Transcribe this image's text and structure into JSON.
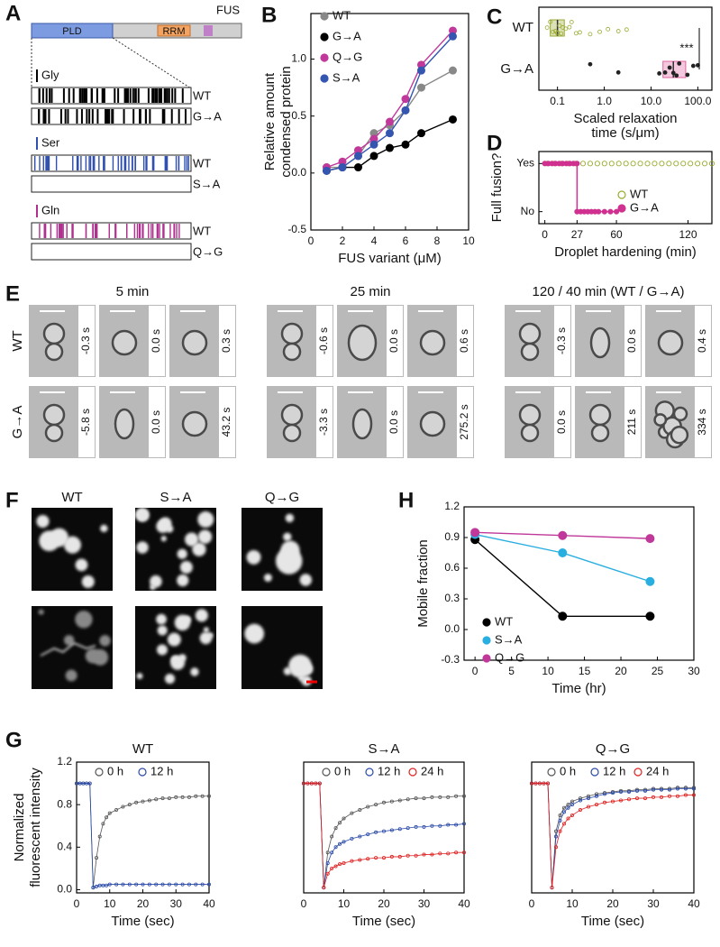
{
  "figure": {
    "panel_a": {
      "label": "A",
      "protein": "FUS",
      "domains": [
        "PLD",
        "RRM"
      ],
      "groups": [
        {
          "residue": "Gly",
          "rows": [
            "WT",
            "G→A"
          ]
        },
        {
          "residue": "Ser",
          "rows": [
            "WT",
            "S→A"
          ]
        },
        {
          "residue": "Gln",
          "rows": [
            "WT",
            "Q→G"
          ]
        }
      ]
    },
    "panel_e": {
      "label": "E",
      "columns": [
        "5 min",
        "25 min",
        "120 / 40 min (WT / G→A)"
      ],
      "rows": [
        "WT",
        "G→A"
      ],
      "times": [
        [
          "-0.3 s",
          "0.0 s",
          "0.3 s",
          "-0.6 s",
          "0.0 s",
          "0.6 s",
          "-0.3 s",
          "0.0 s",
          "0.4 s"
        ],
        [
          "-5.8 s",
          "0.0 s",
          "43.2 s",
          "-3.3 s",
          "0.0 s",
          "275.2 s",
          "0.0 s",
          "211 s",
          "334 s"
        ]
      ]
    },
    "panel_f": {
      "label": "F",
      "columns": [
        "WT",
        "S→A",
        "Q→G"
      ]
    }
  },
  "chart_data": [
    {
      "type": "line",
      "panel": "B",
      "xlabel": "FUS variant (μM)",
      "ylabel": [
        "Relative amount",
        "condensed protein"
      ],
      "xlim": [
        0,
        10
      ],
      "xticks": [
        0,
        2,
        4,
        6,
        8,
        10
      ],
      "ylim": [
        -0.5,
        1.4
      ],
      "yticks": [
        -0.5,
        {
          "value": 0,
          "label": "0.0"
        },
        0.5,
        {
          "value": 1,
          "label": "1.0"
        }
      ],
      "x": [
        1,
        2,
        3,
        4,
        5,
        6,
        7,
        9
      ],
      "series": [
        {
          "name": "WT",
          "color": "#888888",
          "values": [
            0.05,
            0.05,
            0.15,
            0.35,
            0.42,
            0.55,
            0.75,
            0.9
          ]
        },
        {
          "name": "G→A",
          "color": "#000000",
          "values": [
            0.02,
            0.05,
            0.05,
            0.15,
            0.22,
            0.25,
            0.35,
            0.47
          ]
        },
        {
          "name": "Q→G",
          "color": "#c0399a",
          "values": [
            0.05,
            0.1,
            0.2,
            0.3,
            0.45,
            0.65,
            0.95,
            1.25
          ]
        },
        {
          "name": "S→A",
          "color": "#3455b0",
          "values": [
            0.02,
            0.05,
            0.15,
            0.25,
            0.35,
            0.55,
            0.9,
            1.2
          ]
        }
      ]
    },
    {
      "type": "strip",
      "panel": "C",
      "xlabel": [
        "Scaled relaxation",
        "time (s/μm)"
      ],
      "xscale": "log",
      "xlim": [
        0.04,
        200
      ],
      "xticks": [
        0.1,
        {
          "value": 1,
          "label": "1.0"
        },
        {
          "value": 10,
          "label": "10.0"
        },
        {
          "value": 100,
          "label": "100.0"
        }
      ],
      "categories": [
        "WT",
        "G→A"
      ],
      "colors": [
        "#9aaa30",
        "#e060a0"
      ],
      "values": [
        [
          0.06,
          0.07,
          0.08,
          0.09,
          0.1,
          0.1,
          0.11,
          0.12,
          0.13,
          0.15,
          0.18,
          0.2,
          0.25,
          0.3,
          0.5,
          0.8,
          1.2,
          2,
          3
        ],
        [
          0.5,
          2,
          15,
          20,
          25,
          30,
          35,
          40,
          60,
          80,
          100
        ]
      ],
      "boxes": [
        [
          0.07,
          0.1,
          0.14
        ],
        [
          18,
          30,
          55
        ]
      ],
      "annotation": "***"
    },
    {
      "type": "scatter",
      "panel": "D",
      "xlabel": "Droplet hardening (min)",
      "ylabel": "Full fusion?",
      "xlim": [
        -5,
        140
      ],
      "xticks": [
        0,
        27,
        60,
        120
      ],
      "ylim": [
        -0.25,
        1.25
      ],
      "yticks": [
        {
          "value": 1,
          "label": "Yes"
        },
        {
          "value": 0,
          "label": "No"
        }
      ],
      "series": [
        {
          "name": "WT",
          "color": "#9aaa30",
          "filled": false,
          "connect": false,
          "x": [
            2,
            8,
            14,
            20,
            26,
            32,
            38,
            44,
            50,
            56,
            62,
            68,
            74,
            80,
            86,
            92,
            98,
            104,
            110,
            116,
            122,
            128,
            134,
            140
          ],
          "values": [
            1,
            1,
            1,
            1,
            1,
            1,
            1,
            1,
            1,
            1,
            1,
            1,
            1,
            1,
            1,
            1,
            1,
            1,
            1,
            1,
            1,
            1,
            1,
            1
          ]
        },
        {
          "name": "G→A",
          "color": "#d0308f",
          "filled": true,
          "connect": true,
          "x": [
            0,
            3,
            6,
            9,
            12,
            15,
            18,
            21,
            24,
            27,
            27,
            30,
            33,
            36,
            39,
            42,
            45,
            50,
            55,
            60
          ],
          "values": [
            1,
            1,
            1,
            1,
            1,
            1,
            1,
            1,
            1,
            1,
            0,
            0,
            0,
            0,
            0,
            0,
            0,
            0,
            0,
            0
          ]
        }
      ]
    },
    {
      "type": "line",
      "panel": "H",
      "xlabel": "Time (hr)",
      "ylabel": "Mobile fraction",
      "xlim": [
        -1.5,
        30
      ],
      "xticks": [
        0,
        5,
        10,
        15,
        20,
        25,
        30
      ],
      "ylim": [
        -0.3,
        1.2
      ],
      "yticks": [
        -0.3,
        {
          "value": 0,
          "label": "0.0"
        },
        0.3,
        0.6,
        0.9,
        1.2
      ],
      "x": [
        0,
        12,
        24
      ],
      "series": [
        {
          "name": "WT",
          "color": "#000000",
          "values": [
            0.88,
            0.13,
            0.13
          ]
        },
        {
          "name": "S→A",
          "color": "#29aee0",
          "values": [
            0.93,
            0.75,
            0.47
          ]
        },
        {
          "name": "Q→G",
          "color": "#c0399a",
          "values": [
            0.95,
            0.92,
            0.89
          ]
        }
      ]
    },
    {
      "type": "line",
      "panel": "G",
      "title": "WT",
      "xlabel": "Time (sec)",
      "ylabel": [
        "Normalized",
        "fluorescent intensity"
      ],
      "xlim": [
        0,
        40
      ],
      "xticks": [
        0,
        10,
        20,
        30,
        40
      ],
      "ylim": [
        -0.03,
        1.2
      ],
      "yticks": [
        {
          "value": 0,
          "label": "0.0"
        },
        0.4,
        0.8,
        1.2
      ],
      "x": [
        0,
        1,
        2,
        3,
        4,
        5,
        6,
        7,
        8,
        9,
        10,
        12,
        14,
        16,
        18,
        20,
        22,
        24,
        26,
        28,
        30,
        32,
        34,
        36,
        38,
        40
      ],
      "series": [
        {
          "name": "0 h",
          "color": "#555555",
          "values": [
            1,
            1,
            1,
            1,
            1,
            0.02,
            0.3,
            0.5,
            0.62,
            0.68,
            0.72,
            0.75,
            0.78,
            0.8,
            0.82,
            0.83,
            0.84,
            0.85,
            0.86,
            0.86,
            0.87,
            0.87,
            0.87,
            0.88,
            0.88,
            0.88
          ]
        },
        {
          "name": "12 h",
          "color": "#2a4aa8",
          "values": [
            1,
            1,
            1,
            1,
            1,
            0.02,
            0.03,
            0.04,
            0.04,
            0.04,
            0.05,
            0.05,
            0.05,
            0.05,
            0.05,
            0.05,
            0.05,
            0.05,
            0.05,
            0.05,
            0.05,
            0.05,
            0.05,
            0.05,
            0.05,
            0.05
          ]
        }
      ]
    },
    {
      "type": "line",
      "title": "S→A",
      "xlabel": "Time (sec)",
      "xlim": [
        0,
        40
      ],
      "xticks": [
        0,
        10,
        20,
        30,
        40
      ],
      "ylim": [
        -0.03,
        1.2
      ],
      "x": [
        0,
        1,
        2,
        3,
        4,
        5,
        6,
        7,
        8,
        9,
        10,
        12,
        14,
        16,
        18,
        20,
        22,
        24,
        26,
        28,
        30,
        32,
        34,
        36,
        38,
        40
      ],
      "series": [
        {
          "name": "0 h",
          "color": "#555555",
          "values": [
            1,
            1,
            1,
            1,
            1,
            0.02,
            0.35,
            0.5,
            0.58,
            0.63,
            0.67,
            0.72,
            0.75,
            0.78,
            0.8,
            0.82,
            0.83,
            0.84,
            0.85,
            0.86,
            0.86,
            0.87,
            0.87,
            0.87,
            0.88,
            0.88
          ]
        },
        {
          "name": "12 h",
          "color": "#2a4aa8",
          "values": [
            1,
            1,
            1,
            1,
            1,
            0.02,
            0.25,
            0.35,
            0.4,
            0.43,
            0.45,
            0.48,
            0.5,
            0.52,
            0.54,
            0.55,
            0.56,
            0.57,
            0.58,
            0.59,
            0.59,
            0.6,
            0.6,
            0.61,
            0.61,
            0.62
          ]
        },
        {
          "name": "24 h",
          "color": "#e02020",
          "values": [
            1,
            1,
            1,
            1,
            1,
            0.02,
            0.15,
            0.2,
            0.22,
            0.24,
            0.25,
            0.27,
            0.28,
            0.29,
            0.3,
            0.3,
            0.31,
            0.31,
            0.32,
            0.32,
            0.33,
            0.33,
            0.34,
            0.34,
            0.35,
            0.35
          ]
        }
      ]
    },
    {
      "type": "line",
      "title": "Q→G",
      "xlabel": "Time (sec)",
      "xlim": [
        0,
        40
      ],
      "xticks": [
        0,
        10,
        20,
        30,
        40
      ],
      "ylim": [
        -0.03,
        1.2
      ],
      "x": [
        0,
        1,
        2,
        3,
        4,
        5,
        6,
        7,
        8,
        9,
        10,
        12,
        14,
        16,
        18,
        20,
        22,
        24,
        26,
        28,
        30,
        32,
        34,
        36,
        38,
        40
      ],
      "series": [
        {
          "name": "0 h",
          "color": "#555555",
          "values": [
            1,
            1,
            1,
            1,
            1,
            0.02,
            0.55,
            0.7,
            0.77,
            0.8,
            0.83,
            0.86,
            0.88,
            0.9,
            0.91,
            0.92,
            0.93,
            0.93,
            0.94,
            0.94,
            0.95,
            0.95,
            0.95,
            0.96,
            0.96,
            0.96
          ]
        },
        {
          "name": "12 h",
          "color": "#2a4aa8",
          "values": [
            1,
            1,
            1,
            1,
            1,
            0.02,
            0.5,
            0.65,
            0.73,
            0.77,
            0.8,
            0.84,
            0.86,
            0.88,
            0.9,
            0.91,
            0.92,
            0.92,
            0.93,
            0.93,
            0.94,
            0.94,
            0.94,
            0.95,
            0.95,
            0.95
          ]
        },
        {
          "name": "24 h",
          "color": "#e02020",
          "values": [
            1,
            1,
            1,
            1,
            1,
            0.02,
            0.4,
            0.55,
            0.62,
            0.67,
            0.7,
            0.75,
            0.78,
            0.8,
            0.82,
            0.83,
            0.84,
            0.85,
            0.86,
            0.86,
            0.87,
            0.87,
            0.88,
            0.88,
            0.89,
            0.89
          ]
        }
      ]
    }
  ]
}
